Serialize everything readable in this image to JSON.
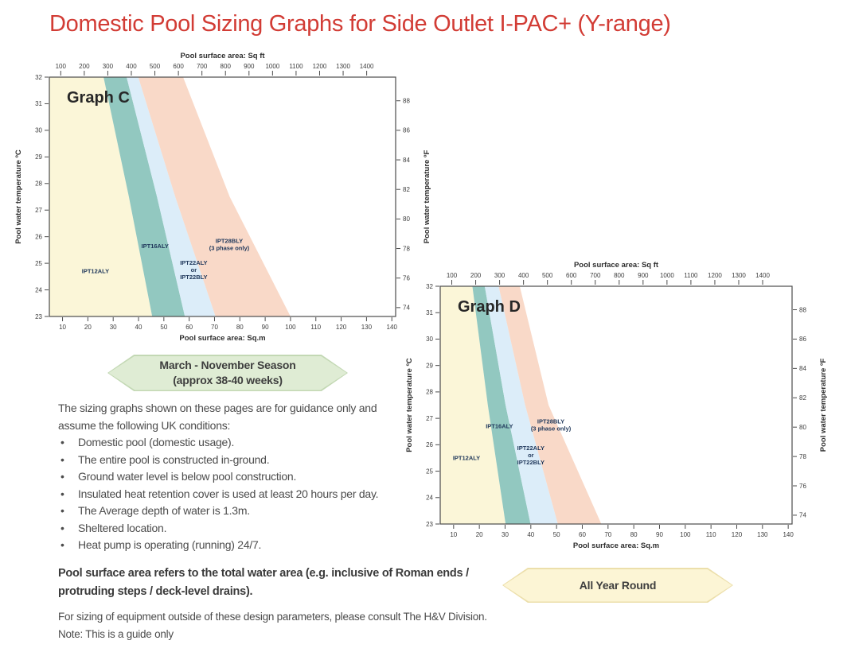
{
  "title": "Domestic Pool Sizing Graphs for Side Outlet I-PAC+ (Y-range)",
  "title_color": "#d23c35",
  "chart_data": [
    {
      "type": "area",
      "id": "C",
      "title": "Graph C",
      "axes": {
        "top": {
          "label": "Pool surface area: Sq ft",
          "ticks": [
            100,
            200,
            300,
            400,
            500,
            600,
            700,
            800,
            900,
            1000,
            1100,
            1200,
            1300,
            1400
          ]
        },
        "bottom": {
          "label": "Pool surface area: Sq.m",
          "ticks": [
            10,
            20,
            30,
            40,
            50,
            60,
            70,
            80,
            90,
            100,
            110,
            120,
            130,
            140
          ],
          "range": [
            4.8,
            141.5
          ]
        },
        "left": {
          "label": "Pool water temperature ºC",
          "ticks": [
            32,
            31,
            30,
            29,
            28,
            27,
            26,
            25,
            24,
            23
          ],
          "range": [
            23,
            32
          ]
        },
        "right": {
          "label": "Pool water temperature ºF",
          "ticks": [
            88,
            86,
            84,
            82,
            80,
            78,
            76,
            74
          ]
        }
      },
      "bands": [
        {
          "model": "IPT12ALY",
          "fill": "#fbf6d8",
          "label_lines": [
            "IPT12ALY"
          ],
          "label_pos": [
            23,
            24.7
          ]
        },
        {
          "model": "IPT16ALY",
          "fill": "#92c8c0",
          "label_lines": [
            "IPT16ALY"
          ],
          "label_pos": [
            46.5,
            25.65
          ]
        },
        {
          "model": "IPT22ALY or IPT22BLY",
          "fill": "#dcedf9",
          "label_lines": [
            "IPT22ALY",
            "or",
            "IPT22BLY"
          ],
          "label_pos": [
            61.8,
            24.75
          ]
        },
        {
          "model": "IPT28BLY (3 phase only)",
          "fill": "#f9d9c8",
          "label_lines": [
            "IPT28BLY",
            "(3 phase only)"
          ],
          "label_pos": [
            75.8,
            25.7
          ]
        }
      ],
      "boundaries_sqm_temp": [
        [
          [
            26.2,
            32
          ],
          [
            36.2,
            27.5
          ],
          [
            45.4,
            23
          ]
        ],
        [
          [
            35.3,
            32
          ],
          [
            47.3,
            27.5
          ],
          [
            58.3,
            23
          ]
        ],
        [
          [
            39.9,
            32
          ],
          [
            54.5,
            27.5
          ],
          [
            70.4,
            23
          ]
        ],
        [
          [
            57.6,
            32
          ],
          [
            76.0,
            27.5
          ],
          [
            100.0,
            23
          ]
        ]
      ]
    },
    {
      "type": "area",
      "id": "D",
      "title": "Graph D",
      "axes": {
        "top": {
          "label": "Pool surface area: Sq ft",
          "ticks": [
            100,
            200,
            300,
            400,
            500,
            600,
            700,
            800,
            900,
            1000,
            1100,
            1200,
            1300,
            1400
          ]
        },
        "bottom": {
          "label": "Pool surface area: Sq.m",
          "ticks": [
            10,
            20,
            30,
            40,
            50,
            60,
            70,
            80,
            90,
            100,
            110,
            120,
            130,
            140
          ],
          "range": [
            4.8,
            141.5
          ]
        },
        "left": {
          "label": "Pool water temperature ºC",
          "ticks": [
            32,
            31,
            30,
            29,
            28,
            27,
            26,
            25,
            24,
            23
          ],
          "range": [
            23,
            32
          ]
        },
        "right": {
          "label": "Pool water temperature ºF",
          "ticks": [
            88,
            86,
            84,
            82,
            80,
            78,
            76,
            74
          ]
        }
      },
      "bands": [
        {
          "model": "IPT12ALY",
          "fill": "#fbf6d8",
          "label_lines": [
            "IPT12ALY"
          ],
          "label_pos": [
            15,
            25.5
          ]
        },
        {
          "model": "IPT16ALY",
          "fill": "#92c8c0",
          "label_lines": [
            "IPT16ALY"
          ],
          "label_pos": [
            27.8,
            26.7
          ]
        },
        {
          "model": "IPT22ALY or IPT22BLY",
          "fill": "#dcedf9",
          "label_lines": [
            "IPT22ALY",
            "or",
            "IPT22BLY"
          ],
          "label_pos": [
            40,
            25.6
          ]
        },
        {
          "model": "IPT28BLY (3 phase only)",
          "fill": "#f9d9c8",
          "label_lines": [
            "IPT28BLY",
            "(3 phase only)"
          ],
          "label_pos": [
            47.8,
            26.75
          ]
        }
      ],
      "boundaries_sqm_temp": [
        [
          [
            17.3,
            32
          ],
          [
            23.3,
            27.5
          ],
          [
            30.2,
            23
          ]
        ],
        [
          [
            22.1,
            32
          ],
          [
            30.2,
            27.5
          ],
          [
            39.9,
            23
          ]
        ],
        [
          [
            27.5,
            32
          ],
          [
            37.8,
            27.5
          ],
          [
            50.5,
            23
          ]
        ],
        [
          [
            35.7,
            32
          ],
          [
            46.9,
            27.5
          ],
          [
            67.4,
            23
          ]
        ]
      ]
    }
  ],
  "banners": [
    {
      "id": "season",
      "lines": [
        "March - November Season",
        "(approx 38-40 weeks)"
      ],
      "fill": "#dfecd4",
      "edge": "#c3d8b4",
      "text_color": "#3e3e3e"
    },
    {
      "id": "allyear",
      "lines": [
        "All Year Round"
      ],
      "fill": "#fcf5d5",
      "edge": "#ecdfab",
      "text_color": "#3e3e3e"
    }
  ],
  "notes": {
    "intro": [
      "The sizing graphs shown on these pages are for guidance only and",
      "assume the following UK conditions:"
    ],
    "bullets": [
      "Domestic pool (domestic usage).",
      "The entire pool is constructed in-ground.",
      "Ground water level is below pool construction.",
      "Insulated heat retention cover is used at least 20 hours per day.",
      "The Average depth of water is 1.3m.",
      "Sheltered location.",
      "Heat pump is operating (running) 24/7."
    ],
    "bold_note": [
      "Pool surface area refers to the total water area (e.g. inclusive of Roman ends /",
      "protruding steps / deck-level drains)."
    ],
    "footer": [
      "For sizing of equipment outside of these design parameters, please consult The H&V Division.",
      "Note: This is a guide only"
    ]
  },
  "style_colors": {
    "frame": "#4b4b4b",
    "tick_label": "#3d3d3d",
    "axis_title": "#2e2e2e",
    "band_label": "#21395c",
    "graph_title": "#272727"
  }
}
